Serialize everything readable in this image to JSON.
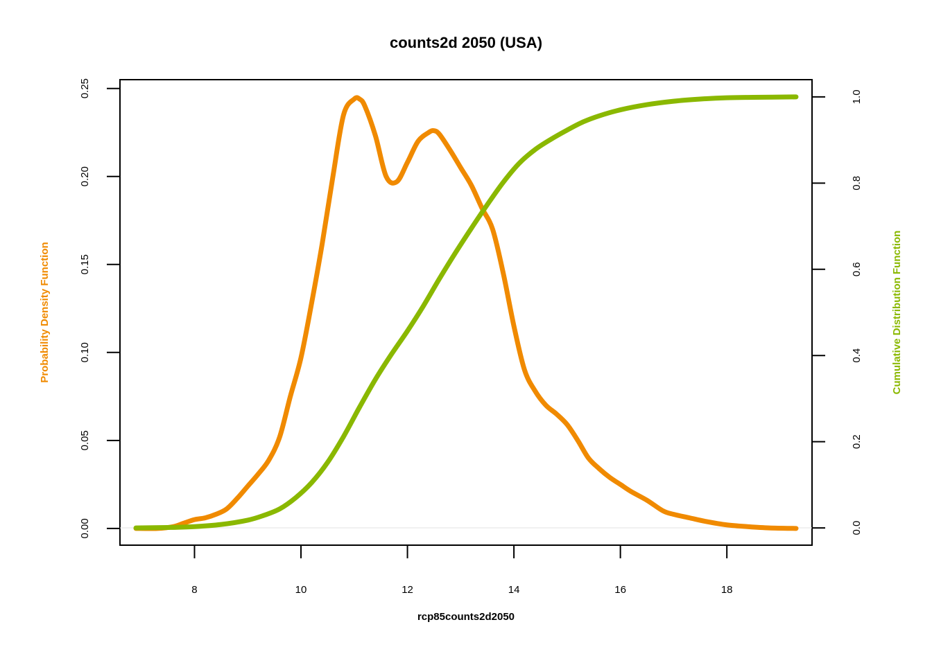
{
  "chart_data": {
    "type": "line",
    "title": "counts2d 2050 (USA)",
    "xlabel": "rcp85counts2d2050",
    "ylabel_left": "Probability Density Function",
    "ylabel_right": "Cumulative Distribution Function",
    "xlim": [
      6.6,
      19.6
    ],
    "x_ticks": [
      8,
      10,
      12,
      14,
      16,
      18
    ],
    "x_tick_labels": [
      "8",
      "10",
      "12",
      "14",
      "16",
      "18"
    ],
    "ylim_left": [
      -0.0095,
      0.255
    ],
    "y_ticks_left": [
      0.0,
      0.05,
      0.1,
      0.15,
      0.2,
      0.25
    ],
    "y_tick_labels_left": [
      "0.00",
      "0.05",
      "0.10",
      "0.15",
      "0.20",
      "0.25"
    ],
    "ylim_right": [
      -0.04,
      1.04
    ],
    "y_ticks_right": [
      0.0,
      0.2,
      0.4,
      0.6,
      0.8,
      1.0
    ],
    "y_tick_labels_right": [
      "0.0",
      "0.2",
      "0.4",
      "0.6",
      "0.8",
      "1.0"
    ],
    "grid": false,
    "colors": {
      "pdf": "#f08a00",
      "cdf": "#8ab800"
    },
    "series": [
      {
        "axis": "left",
        "color": "#f08a00",
        "x": [
          6.9,
          7.3,
          7.6,
          7.8,
          8.0,
          8.2,
          8.4,
          8.6,
          8.8,
          9.0,
          9.2,
          9.4,
          9.6,
          9.8,
          10.0,
          10.2,
          10.4,
          10.6,
          10.8,
          11.0,
          11.1,
          11.2,
          11.4,
          11.6,
          11.8,
          12.0,
          12.2,
          12.4,
          12.5,
          12.6,
          12.8,
          13.0,
          13.2,
          13.4,
          13.6,
          13.8,
          14.0,
          14.2,
          14.4,
          14.6,
          14.8,
          15.0,
          15.2,
          15.4,
          15.6,
          15.8,
          16.0,
          16.2,
          16.5,
          16.8,
          17.0,
          17.3,
          17.6,
          18.0,
          18.4,
          18.8,
          19.3
        ],
        "values": [
          0.0,
          0.0,
          0.001,
          0.003,
          0.005,
          0.006,
          0.008,
          0.011,
          0.017,
          0.024,
          0.031,
          0.039,
          0.052,
          0.075,
          0.097,
          0.128,
          0.162,
          0.2,
          0.235,
          0.244,
          0.244,
          0.24,
          0.223,
          0.2,
          0.197,
          0.208,
          0.22,
          0.225,
          0.226,
          0.224,
          0.215,
          0.205,
          0.195,
          0.182,
          0.17,
          0.145,
          0.115,
          0.09,
          0.078,
          0.07,
          0.065,
          0.059,
          0.05,
          0.04,
          0.034,
          0.029,
          0.025,
          0.021,
          0.016,
          0.01,
          0.008,
          0.006,
          0.004,
          0.002,
          0.001,
          0.0003,
          0.0
        ],
        "unit_note": ""
      },
      {
        "axis": "right",
        "color": "#8ab800",
        "x": [
          6.9,
          7.5,
          8.0,
          8.5,
          9.0,
          9.3,
          9.6,
          9.9,
          10.2,
          10.5,
          10.8,
          11.1,
          11.4,
          11.7,
          12.0,
          12.3,
          12.6,
          12.9,
          13.2,
          13.5,
          13.8,
          14.1,
          14.4,
          14.7,
          15.0,
          15.3,
          15.6,
          16.0,
          16.5,
          17.0,
          17.5,
          18.0,
          18.5,
          19.3
        ],
        "values": [
          0.0,
          0.001,
          0.003,
          0.008,
          0.018,
          0.029,
          0.044,
          0.07,
          0.105,
          0.152,
          0.212,
          0.28,
          0.345,
          0.403,
          0.457,
          0.515,
          0.578,
          0.638,
          0.695,
          0.75,
          0.802,
          0.846,
          0.878,
          0.902,
          0.923,
          0.942,
          0.956,
          0.97,
          0.982,
          0.99,
          0.995,
          0.998,
          0.999,
          1.0
        ]
      }
    ]
  }
}
